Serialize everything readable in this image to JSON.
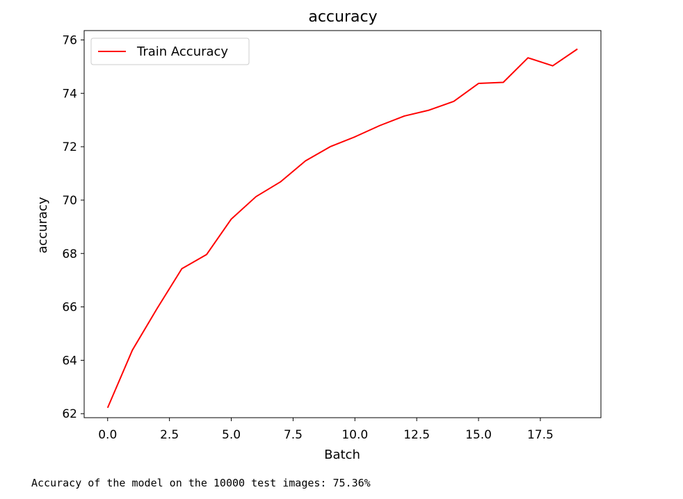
{
  "chart_data": {
    "type": "line",
    "title": "accuracy",
    "xlabel": "Batch",
    "ylabel": "accuracy",
    "xlim": [
      -0.95,
      19.95
    ],
    "ylim": [
      61.85,
      76.35
    ],
    "xticks": [
      0,
      2.5,
      5,
      7.5,
      10,
      12.5,
      15,
      17.5
    ],
    "xtick_labels": [
      "0.0",
      "2.5",
      "5.0",
      "7.5",
      "10.0",
      "12.5",
      "15.0",
      "17.5"
    ],
    "yticks": [
      62,
      64,
      66,
      68,
      70,
      72,
      74,
      76
    ],
    "ytick_labels": [
      "62",
      "64",
      "66",
      "68",
      "70",
      "72",
      "74",
      "76"
    ],
    "legend_position": "upper-left",
    "grid": false,
    "series": [
      {
        "name": "Train Accuracy",
        "color": "#ff0000",
        "x": [
          0,
          1,
          2,
          3,
          4,
          5,
          6,
          7,
          8,
          9,
          10,
          11,
          12,
          13,
          14,
          15,
          16,
          17,
          18,
          19
        ],
        "values": [
          62.22,
          64.38,
          65.94,
          67.43,
          67.96,
          69.29,
          70.13,
          70.69,
          71.47,
          72.0,
          72.37,
          72.79,
          73.15,
          73.37,
          73.7,
          74.37,
          74.41,
          75.33,
          75.03,
          75.66
        ]
      }
    ]
  },
  "output_text": "Accuracy of the model on the 10000 test images: 75.36%"
}
